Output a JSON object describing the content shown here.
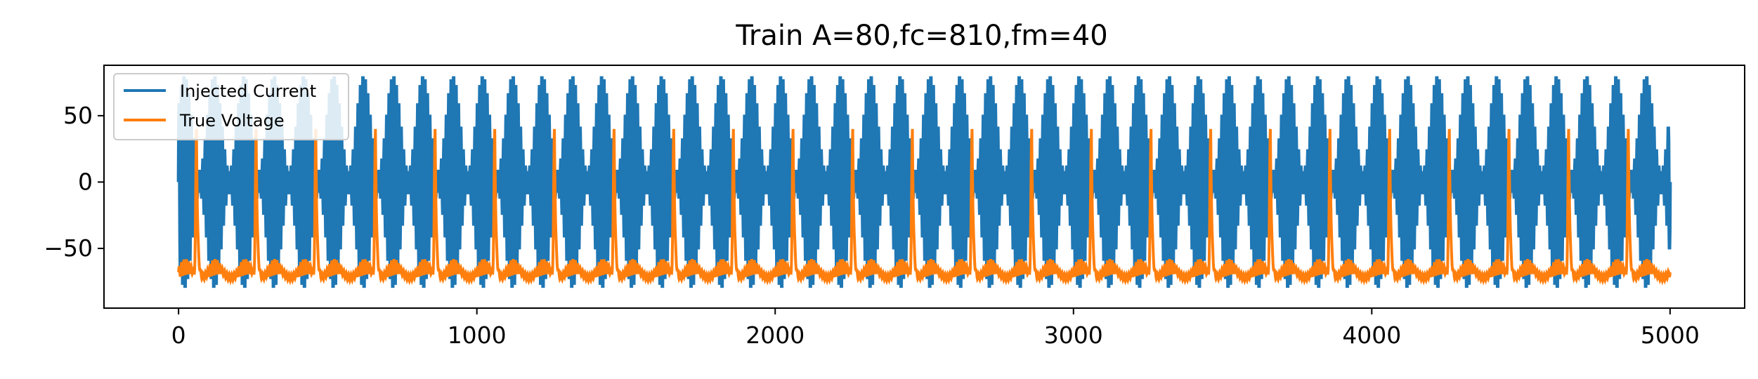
{
  "chart_data": {
    "type": "line",
    "title": "Train A=80,fc=810,fm=40",
    "xlabel": "",
    "ylabel": "",
    "xlim": [
      -250,
      5250
    ],
    "ylim": [
      -95,
      88
    ],
    "xticks": [
      0,
      1000,
      2000,
      3000,
      4000,
      5000
    ],
    "xtick_labels": [
      "0",
      "1000",
      "2000",
      "3000",
      "4000",
      "5000"
    ],
    "yticks": [
      -50,
      0,
      50
    ],
    "ytick_labels": [
      "−50",
      "0",
      "50"
    ],
    "grid": false,
    "legend_position": "upper-left",
    "series": [
      {
        "name": "Injected Current",
        "color": "#1f77b4",
        "description_values": {
          "amplitude": 80,
          "carrier_period": 8,
          "modulation_period": 100,
          "x_range": [
            0,
            5000
          ]
        }
      },
      {
        "name": "True Voltage",
        "color": "#ff7f0e",
        "description_values": {
          "baseline": -68,
          "spike_peak": 40,
          "spike_times": [
            60,
            260,
            460,
            660,
            860,
            1060,
            1260,
            1460,
            1660,
            1860,
            2060,
            2260,
            2460,
            2660,
            2860,
            3060,
            3260,
            3460,
            3660,
            3860,
            4060,
            4260,
            4460,
            4660,
            4860
          ],
          "x_range": [
            0,
            5000
          ]
        }
      }
    ]
  }
}
